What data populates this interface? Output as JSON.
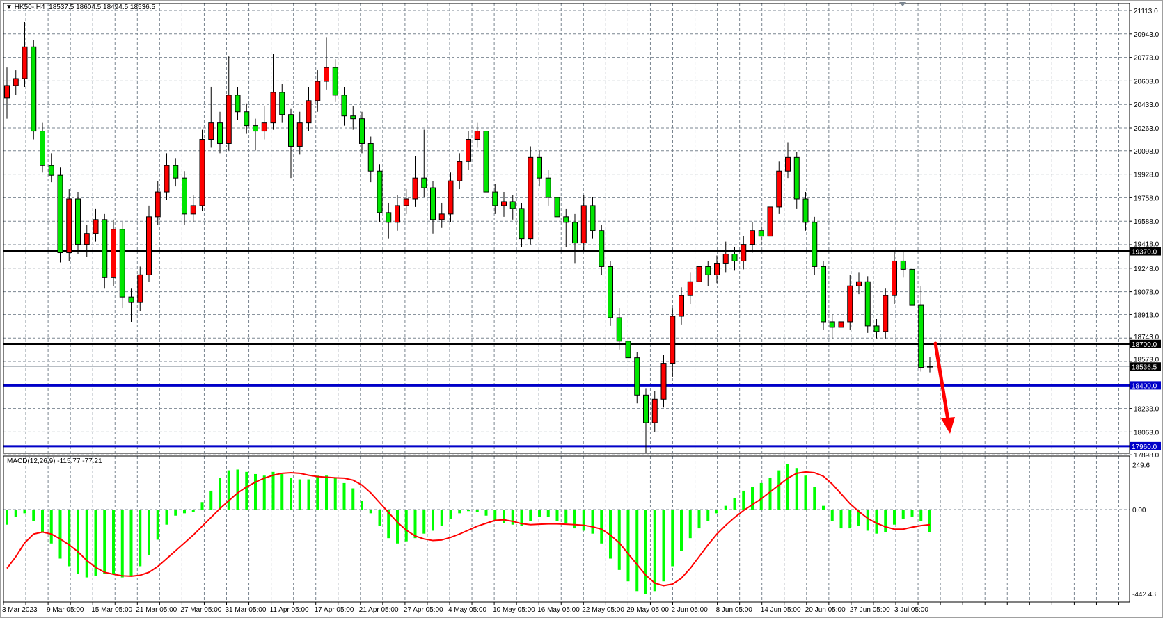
{
  "header": {
    "symbol": "HK50-,H4",
    "ohlc": "18537.5 18604.5 18494.5 18536.5"
  },
  "colors": {
    "up_candle": "#ff0000",
    "down_candle": "#00e600",
    "histogram": "#00ff00",
    "signal": "#ff0000",
    "support_black": "#000000",
    "support_blue": "#0000c8",
    "arrow": "#ff0000",
    "grid": "#7a8590"
  },
  "chart_data": [
    {
      "type": "candlestick",
      "title": "HK50-,H4",
      "ylim": [
        17898,
        21113
      ],
      "grid": true,
      "price_ticks": [
        "21113.0",
        "20943.0",
        "20773.0",
        "20603.0",
        "20433.0",
        "20263.0",
        "20098.0",
        "19928.0",
        "19758.0",
        "19588.0",
        "19418.0",
        "19248.0",
        "19078.0",
        "18913.0",
        "18743.0",
        "18573.0",
        "18233.0",
        "18063.0",
        "17898.0"
      ],
      "date_labels": [
        "3 Mar 2023",
        "9 Mar 05:00",
        "15 Mar 05:00",
        "21 Mar 05:00",
        "27 Mar 05:00",
        "31 Mar 05:00",
        "11 Apr 05:00",
        "17 Apr 05:00",
        "21 Apr 05:00",
        "27 Apr 05:00",
        "4 May 05:00",
        "10 May 05:00",
        "16 May 05:00",
        "22 May 05:00",
        "29 May 05:00",
        "2 Jun 05:00",
        "8 Jun 05:00",
        "14 Jun 05:00",
        "20 Jun 05:00",
        "27 Jun 05:00",
        "3 Jul 05:00"
      ],
      "horizontal_lines": [
        {
          "price": 19370.0,
          "label": "19370.0",
          "color": "#000000"
        },
        {
          "price": 18700.0,
          "label": "18700.0",
          "color": "#000000"
        },
        {
          "price": 18400.0,
          "label": "18400.0",
          "color": "#0000c8"
        },
        {
          "price": 17960.0,
          "label": "17960.0",
          "color": "#0000c8"
        }
      ],
      "bid_line": {
        "price": 18536.5,
        "label": "18536.5"
      },
      "candles_ohlc": [
        [
          20480,
          20700,
          20330,
          20570
        ],
        [
          20570,
          20680,
          20500,
          20620
        ],
        [
          20620,
          21030,
          20560,
          20850
        ],
        [
          20850,
          20900,
          20180,
          20240
        ],
        [
          20240,
          20300,
          19940,
          19990
        ],
        [
          19990,
          20080,
          19870,
          19920
        ],
        [
          19920,
          19980,
          19290,
          19360
        ],
        [
          19360,
          19820,
          19300,
          19750
        ],
        [
          19750,
          19800,
          19350,
          19420
        ],
        [
          19420,
          19560,
          19330,
          19500
        ],
        [
          19500,
          19680,
          19440,
          19600
        ],
        [
          19600,
          19640,
          19100,
          19180
        ],
        [
          19180,
          19600,
          19120,
          19530
        ],
        [
          19530,
          19580,
          18960,
          19040
        ],
        [
          19040,
          19100,
          18860,
          19000
        ],
        [
          19000,
          19260,
          18940,
          19200
        ],
        [
          19200,
          19700,
          19150,
          19620
        ],
        [
          19620,
          19880,
          19560,
          19800
        ],
        [
          19800,
          20080,
          19740,
          19990
        ],
        [
          19990,
          20040,
          19840,
          19900
        ],
        [
          19900,
          19950,
          19560,
          19640
        ],
        [
          19640,
          19780,
          19580,
          19700
        ],
        [
          19700,
          20250,
          19660,
          20180
        ],
        [
          20180,
          20560,
          20120,
          20300
        ],
        [
          20300,
          20380,
          20080,
          20150
        ],
        [
          20150,
          20780,
          20100,
          20500
        ],
        [
          20500,
          20560,
          20320,
          20380
        ],
        [
          20380,
          20440,
          20220,
          20280
        ],
        [
          20280,
          20330,
          20100,
          20240
        ],
        [
          20240,
          20420,
          20180,
          20300
        ],
        [
          20300,
          20800,
          20250,
          20520
        ],
        [
          20520,
          20580,
          20300,
          20360
        ],
        [
          20360,
          20400,
          19900,
          20130
        ],
        [
          20130,
          20380,
          20070,
          20300
        ],
        [
          20300,
          20560,
          20240,
          20460
        ],
        [
          20460,
          20680,
          20380,
          20600
        ],
        [
          20600,
          20920,
          20540,
          20700
        ],
        [
          20700,
          20760,
          20450,
          20500
        ],
        [
          20500,
          20560,
          20280,
          20350
        ],
        [
          20350,
          20420,
          20250,
          20330
        ],
        [
          20330,
          20380,
          20080,
          20150
        ],
        [
          20150,
          20200,
          19870,
          19950
        ],
        [
          19950,
          20000,
          19580,
          19650
        ],
        [
          19650,
          19720,
          19460,
          19580
        ],
        [
          19580,
          19780,
          19520,
          19700
        ],
        [
          19700,
          19820,
          19640,
          19750
        ],
        [
          19750,
          20060,
          19690,
          19900
        ],
        [
          19900,
          20250,
          19760,
          19830
        ],
        [
          19830,
          19880,
          19500,
          19600
        ],
        [
          19600,
          19720,
          19540,
          19640
        ],
        [
          19640,
          19940,
          19580,
          19880
        ],
        [
          19880,
          20080,
          19820,
          20020
        ],
        [
          20020,
          20240,
          19960,
          20180
        ],
        [
          20180,
          20300,
          20120,
          20240
        ],
        [
          20240,
          20280,
          19730,
          19800
        ],
        [
          19800,
          19860,
          19640,
          19700
        ],
        [
          19700,
          19800,
          19620,
          19730
        ],
        [
          19730,
          19780,
          19600,
          19680
        ],
        [
          19680,
          19720,
          19400,
          19460
        ],
        [
          19460,
          20130,
          19420,
          20050
        ],
        [
          20050,
          20100,
          19840,
          19900
        ],
        [
          19900,
          19960,
          19700,
          19760
        ],
        [
          19760,
          19810,
          19480,
          19620
        ],
        [
          19620,
          19680,
          19400,
          19580
        ],
        [
          19580,
          19640,
          19280,
          19430
        ],
        [
          19430,
          19780,
          19380,
          19700
        ],
        [
          19700,
          19760,
          19460,
          19520
        ],
        [
          19520,
          19560,
          19200,
          19260
        ],
        [
          19260,
          19300,
          18830,
          18890
        ],
        [
          18890,
          18960,
          18660,
          18720
        ],
        [
          18720,
          18760,
          18520,
          18600
        ],
        [
          18600,
          18640,
          18270,
          18330
        ],
        [
          18330,
          18380,
          17910,
          18130
        ],
        [
          18130,
          18360,
          18060,
          18300
        ],
        [
          18300,
          18620,
          18240,
          18560
        ],
        [
          18560,
          18960,
          18460,
          18900
        ],
        [
          18900,
          19110,
          18840,
          19050
        ],
        [
          19050,
          19220,
          18990,
          19150
        ],
        [
          19150,
          19320,
          19090,
          19260
        ],
        [
          19260,
          19300,
          19120,
          19200
        ],
        [
          19200,
          19340,
          19140,
          19280
        ],
        [
          19280,
          19440,
          19220,
          19350
        ],
        [
          19350,
          19400,
          19230,
          19300
        ],
        [
          19300,
          19480,
          19240,
          19420
        ],
        [
          19420,
          19580,
          19360,
          19520
        ],
        [
          19520,
          19560,
          19410,
          19480
        ],
        [
          19480,
          19760,
          19420,
          19690
        ],
        [
          19690,
          20020,
          19640,
          19950
        ],
        [
          19950,
          20160,
          19900,
          20050
        ],
        [
          20050,
          20090,
          19680,
          19750
        ],
        [
          19750,
          19800,
          19520,
          19580
        ],
        [
          19580,
          19620,
          19200,
          19260
        ],
        [
          19260,
          19300,
          18800,
          18860
        ],
        [
          18860,
          18920,
          18740,
          18820
        ],
        [
          18820,
          18920,
          18760,
          18860
        ],
        [
          18860,
          19200,
          18800,
          19120
        ],
        [
          19120,
          19220,
          19060,
          19150
        ],
        [
          19150,
          19190,
          18780,
          18830
        ],
        [
          18830,
          18880,
          18740,
          18790
        ],
        [
          18790,
          19100,
          18740,
          19050
        ],
        [
          19050,
          19380,
          18990,
          19300
        ],
        [
          19300,
          19380,
          19180,
          19240
        ],
        [
          19240,
          19280,
          18940,
          18980
        ],
        [
          18980,
          19120,
          18500,
          18530
        ],
        [
          18537.5,
          18604.5,
          18494.5,
          18536.5
        ]
      ]
    },
    {
      "type": "bar",
      "title": "MACD(12,26,9)",
      "values_label": "-115.77 -77.21",
      "ylim": [
        -442.43,
        249.6
      ],
      "tick_labels": [
        "249.6",
        "0.00",
        "-442.43"
      ],
      "histogram": [
        -77,
        -38,
        -19,
        -58,
        -115,
        -173,
        -250,
        -289,
        -327,
        -346,
        -339,
        -327,
        -327,
        -346,
        -339,
        -289,
        -231,
        -154,
        -77,
        -31,
        -19,
        -12,
        38,
        96,
        162,
        200,
        204,
        192,
        181,
        173,
        192,
        181,
        162,
        154,
        154,
        173,
        173,
        162,
        135,
        108,
        46,
        -19,
        -85,
        -146,
        -173,
        -162,
        -146,
        -123,
        -108,
        -85,
        -46,
        -19,
        -8,
        -12,
        -31,
        -58,
        -69,
        -77,
        -85,
        -58,
        -38,
        -38,
        -58,
        -69,
        -96,
        -108,
        -123,
        -173,
        -250,
        -308,
        -366,
        -416,
        -431,
        -416,
        -366,
        -289,
        -212,
        -146,
        -96,
        -58,
        -19,
        19,
        58,
        96,
        115,
        135,
        162,
        200,
        231,
        212,
        173,
        115,
        19,
        -58,
        -96,
        -96,
        -85,
        -108,
        -123,
        -115,
        -77,
        -46,
        -38,
        -58,
        -115.77
      ],
      "signal": [
        -300,
        -240,
        -170,
        -125,
        -115,
        -125,
        -150,
        -180,
        -215,
        -260,
        -295,
        -320,
        -330,
        -338,
        -340,
        -335,
        -320,
        -290,
        -250,
        -210,
        -170,
        -130,
        -85,
        -40,
        5,
        45,
        85,
        115,
        140,
        160,
        175,
        185,
        188,
        185,
        175,
        168,
        165,
        162,
        160,
        150,
        125,
        85,
        35,
        -15,
        -65,
        -105,
        -135,
        -150,
        -158,
        -155,
        -142,
        -125,
        -105,
        -85,
        -70,
        -55,
        -52,
        -60,
        -72,
        -77,
        -75,
        -73,
        -73,
        -75,
        -77,
        -80,
        -88,
        -100,
        -130,
        -170,
        -225,
        -280,
        -335,
        -375,
        -388,
        -380,
        -350,
        -300,
        -240,
        -180,
        -125,
        -80,
        -40,
        -5,
        25,
        55,
        90,
        125,
        160,
        185,
        192,
        188,
        170,
        130,
        80,
        30,
        -10,
        -45,
        -70,
        -88,
        -100,
        -100,
        -90,
        -82,
        -77.21
      ]
    }
  ]
}
